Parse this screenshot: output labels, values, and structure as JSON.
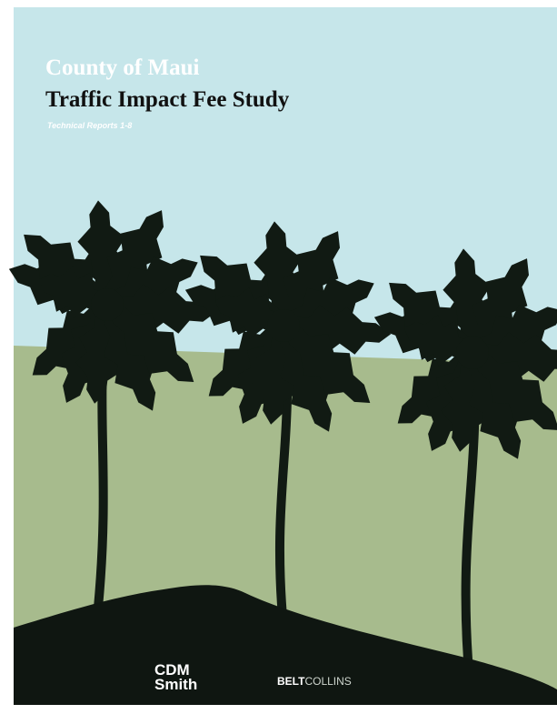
{
  "header": {
    "title": "County of Maui",
    "subtitle": "Traffic Impact Fee Study",
    "note": "Technical Reports 1-8"
  },
  "logos": {
    "cdm": [
      "CDM",
      "Smith"
    ],
    "belt": [
      "BELT",
      "COLLINS"
    ]
  }
}
